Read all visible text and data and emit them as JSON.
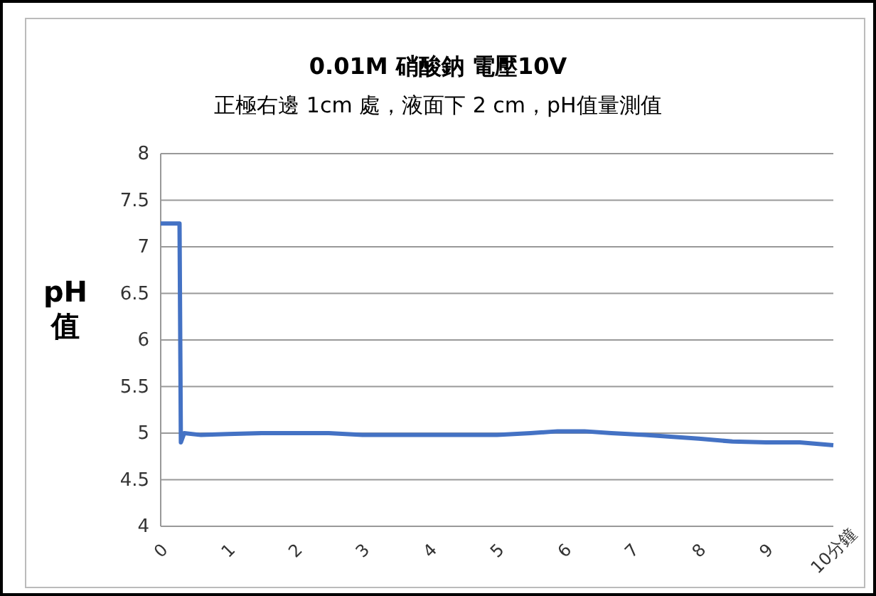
{
  "chart_data": {
    "type": "line",
    "title": "0.01M  硝酸鈉    電壓10V",
    "subtitle": "正極右邊 1cm 處，液面下 2 cm，pH值量測值",
    "ylabel": "pH\n值",
    "x": [
      0,
      0.28,
      0.3,
      0.35,
      0.6,
      1,
      1.5,
      2,
      2.5,
      3,
      4,
      5,
      5.5,
      5.9,
      6.3,
      6.7,
      7.2,
      8,
      8.5,
      9,
      9.5,
      10
    ],
    "series": [
      {
        "color": "#4472c4",
        "values": [
          7.25,
          7.25,
          4.9,
          5.0,
          4.98,
          4.99,
          5.0,
          5.0,
          5.0,
          4.98,
          4.98,
          4.98,
          5.0,
          5.02,
          5.02,
          5.0,
          4.98,
          4.94,
          4.91,
          4.9,
          4.9,
          4.87
        ]
      }
    ],
    "xlim": [
      0,
      10
    ],
    "xticks": [
      0,
      1,
      2,
      3,
      4,
      5,
      6,
      7,
      8,
      9,
      {
        "value": 10,
        "label": "10分鐘"
      }
    ],
    "ylim": [
      4,
      8
    ],
    "yticks": [
      4,
      4.5,
      5,
      5.5,
      6,
      6.5,
      7,
      7.5,
      8
    ],
    "grid": "y",
    "marker": "none",
    "line_style": "solid"
  }
}
